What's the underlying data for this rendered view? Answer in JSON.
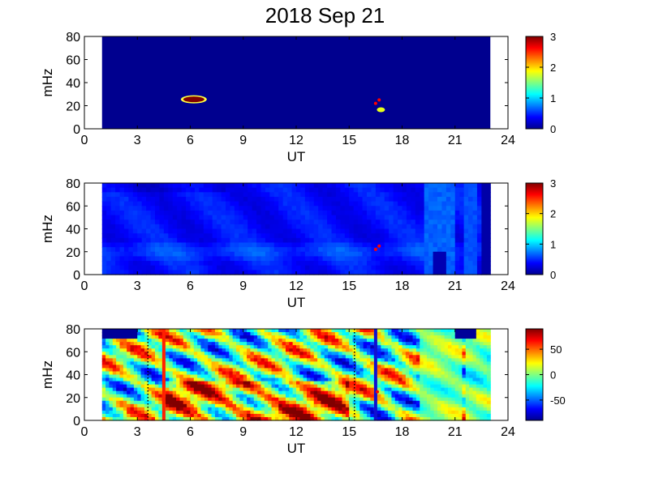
{
  "figure": {
    "title": "2018 Sep 21"
  },
  "colors": {
    "jet": [
      "#00008f",
      "#0000ff",
      "#0080ff",
      "#00ffff",
      "#80ff80",
      "#ffff00",
      "#ff8000",
      "#ff0000",
      "#800000"
    ],
    "marker": "#ff0000",
    "line_red": "#ff2000",
    "line_blue": "#1010d0"
  },
  "chart_data": [
    {
      "type": "heatmap",
      "title": "",
      "xlabel": "UT",
      "ylabel": "mHz",
      "xlim": [
        0,
        24
      ],
      "ylim": [
        0,
        80
      ],
      "xticks": [
        "0",
        "3",
        "6",
        "9",
        "12",
        "15",
        "18",
        "21",
        "24"
      ],
      "yticks": [
        "0",
        "20",
        "40",
        "60",
        "80"
      ],
      "data_range_x": [
        1,
        23
      ],
      "colorbar": {
        "range": [
          0,
          3
        ],
        "ticks": [
          "0",
          "1",
          "2",
          "3"
        ]
      },
      "background_level": 0,
      "features": [
        {
          "x": 6.2,
          "y": 25.5,
          "level": 3.0,
          "note": "ellipse"
        },
        {
          "x": 16.8,
          "y": 16.5,
          "level": 1.8,
          "note": "small blob"
        }
      ],
      "markers": [
        {
          "x": 16.5,
          "y": 22
        },
        {
          "x": 16.7,
          "y": 25
        }
      ]
    },
    {
      "type": "heatmap",
      "title": "",
      "xlabel": "UT",
      "ylabel": "mHz",
      "xlim": [
        0,
        24
      ],
      "ylim": [
        0,
        80
      ],
      "xticks": [
        "0",
        "3",
        "6",
        "9",
        "12",
        "15",
        "18",
        "21",
        "24"
      ],
      "yticks": [
        "0",
        "20",
        "40",
        "60",
        "80"
      ],
      "data_range_x": [
        1,
        23
      ],
      "colorbar": {
        "range": [
          0,
          3
        ],
        "ticks": [
          "0",
          "1",
          "2",
          "3"
        ]
      },
      "background_level": 0.3,
      "markers": [
        {
          "x": 16.5,
          "y": 22
        },
        {
          "x": 16.7,
          "y": 25
        }
      ]
    },
    {
      "type": "heatmap",
      "title": "",
      "xlabel": "UT",
      "ylabel": "mHz",
      "xlim": [
        0,
        24
      ],
      "ylim": [
        0,
        80
      ],
      "xticks": [
        "0",
        "3",
        "6",
        "9",
        "12",
        "15",
        "18",
        "21",
        "24"
      ],
      "yticks": [
        "0",
        "20",
        "40",
        "60",
        "80"
      ],
      "data_range_x": [
        1,
        23
      ],
      "colorbar": {
        "range": [
          -90,
          90
        ],
        "ticks": [
          "50",
          "0",
          "-50"
        ],
        "tick_values": [
          50,
          0,
          -50
        ]
      },
      "vertical_lines": [
        {
          "x": 4.5,
          "color": "red"
        },
        {
          "x": 16.5,
          "color": "blue"
        }
      ],
      "dotted_lines": [
        {
          "x": 3.6
        },
        {
          "x": 15.3
        }
      ],
      "markers": [
        {
          "x": 16.6,
          "y": 25
        }
      ]
    }
  ]
}
